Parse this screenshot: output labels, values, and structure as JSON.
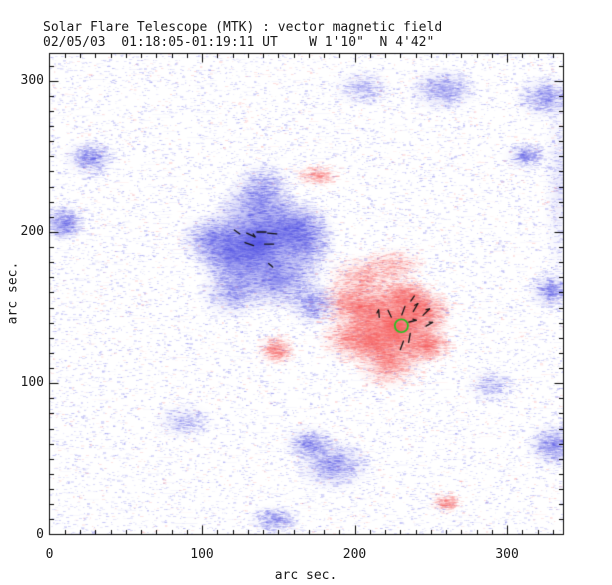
{
  "chart_data": {
    "type": "heatmap",
    "title": "Solar Flare Telescope (MTK) : vector magnetic field",
    "subtitle": "02/05/03  01:18:05-01:19:11 UT    W 1'10\"  N 4'42\"",
    "xlabel": "arc sec.",
    "ylabel": "arc sec.",
    "xlim": [
      0,
      337
    ],
    "ylim": [
      0,
      318
    ],
    "x_major_ticks": [
      0,
      100,
      200,
      300
    ],
    "y_major_ticks": [
      0,
      100,
      200,
      300
    ],
    "minor_tick_step": 10,
    "grid": false,
    "legend": "none",
    "colors": {
      "negative_polarity": "#4b4be4",
      "positive_polarity": "#f85555",
      "flare_marker": "#22c422",
      "vector": "#151515",
      "frame": "#000000",
      "background": "#ffffff"
    },
    "regions": [
      {
        "polarity": "negative",
        "x": 137,
        "y": 193,
        "sx": 15,
        "sy": 14,
        "intensity": 1.0
      },
      {
        "polarity": "negative",
        "x": 120,
        "y": 185,
        "sx": 10,
        "sy": 9,
        "intensity": 0.55
      },
      {
        "polarity": "negative",
        "x": 158,
        "y": 203,
        "sx": 11,
        "sy": 8,
        "intensity": 0.5
      },
      {
        "polarity": "negative",
        "x": 150,
        "y": 168,
        "sx": 12,
        "sy": 8,
        "intensity": 0.5
      },
      {
        "polarity": "negative",
        "x": 168,
        "y": 193,
        "sx": 8,
        "sy": 10,
        "intensity": 0.4
      },
      {
        "polarity": "negative",
        "x": 120,
        "y": 160,
        "sx": 9,
        "sy": 7,
        "intensity": 0.35
      },
      {
        "polarity": "negative",
        "x": 172,
        "y": 152,
        "sx": 7,
        "sy": 6,
        "intensity": 0.3
      },
      {
        "polarity": "negative",
        "x": 105,
        "y": 195,
        "sx": 8,
        "sy": 7,
        "intensity": 0.35
      },
      {
        "polarity": "negative",
        "x": 137,
        "y": 220,
        "sx": 10,
        "sy": 7,
        "intensity": 0.35
      },
      {
        "polarity": "negative",
        "x": 140,
        "y": 232,
        "sx": 8,
        "sy": 6,
        "intensity": 0.22
      },
      {
        "polarity": "positive",
        "x": 228,
        "y": 137,
        "sx": 13,
        "sy": 12,
        "intensity": 1.0
      },
      {
        "polarity": "positive",
        "x": 207,
        "y": 148,
        "sx": 9,
        "sy": 7,
        "intensity": 0.5
      },
      {
        "polarity": "positive",
        "x": 243,
        "y": 148,
        "sx": 9,
        "sy": 6,
        "intensity": 0.45
      },
      {
        "polarity": "positive",
        "x": 222,
        "y": 113,
        "sx": 9,
        "sy": 7,
        "intensity": 0.4
      },
      {
        "polarity": "positive",
        "x": 247,
        "y": 125,
        "sx": 7,
        "sy": 5,
        "intensity": 0.35
      },
      {
        "polarity": "positive",
        "x": 210,
        "y": 128,
        "sx": 8,
        "sy": 6,
        "intensity": 0.45
      },
      {
        "polarity": "positive",
        "x": 232,
        "y": 158,
        "sx": 8,
        "sy": 5,
        "intensity": 0.4
      },
      {
        "polarity": "positive",
        "x": 196,
        "y": 130,
        "sx": 8,
        "sy": 7,
        "intensity": 0.35
      },
      {
        "polarity": "positive",
        "x": 205,
        "y": 170,
        "sx": 10,
        "sy": 6,
        "intensity": 0.28
      },
      {
        "polarity": "positive",
        "x": 225,
        "y": 178,
        "sx": 9,
        "sy": 5,
        "intensity": 0.22
      },
      {
        "polarity": "positive",
        "x": 195,
        "y": 155,
        "sx": 8,
        "sy": 6,
        "intensity": 0.32
      },
      {
        "polarity": "negative",
        "x": 26,
        "y": 249,
        "sx": 7,
        "sy": 5,
        "intensity": 0.3
      },
      {
        "polarity": "negative",
        "x": 9,
        "y": 206,
        "sx": 6,
        "sy": 5,
        "intensity": 0.35
      },
      {
        "polarity": "negative",
        "x": 258,
        "y": 294,
        "sx": 9,
        "sy": 6,
        "intensity": 0.32
      },
      {
        "polarity": "negative",
        "x": 325,
        "y": 289,
        "sx": 8,
        "sy": 6,
        "intensity": 0.3
      },
      {
        "polarity": "negative",
        "x": 312,
        "y": 250,
        "sx": 6,
        "sy": 4,
        "intensity": 0.22
      },
      {
        "polarity": "negative",
        "x": 186,
        "y": 46,
        "sx": 10,
        "sy": 7,
        "intensity": 0.4
      },
      {
        "polarity": "negative",
        "x": 170,
        "y": 60,
        "sx": 7,
        "sy": 5,
        "intensity": 0.3
      },
      {
        "polarity": "negative",
        "x": 330,
        "y": 59,
        "sx": 7,
        "sy": 6,
        "intensity": 0.35
      },
      {
        "polarity": "negative",
        "x": 147,
        "y": 10,
        "sx": 7,
        "sy": 4,
        "intensity": 0.22
      },
      {
        "polarity": "negative",
        "x": 328,
        "y": 161,
        "sx": 6,
        "sy": 5,
        "intensity": 0.3
      },
      {
        "polarity": "negative",
        "x": 88,
        "y": 75,
        "sx": 8,
        "sy": 5,
        "intensity": 0.16
      },
      {
        "polarity": "negative",
        "x": 289,
        "y": 98,
        "sx": 7,
        "sy": 5,
        "intensity": 0.14
      },
      {
        "polarity": "negative",
        "x": 334,
        "y": 230,
        "sx": 4,
        "sy": 30,
        "intensity": 0.13
      },
      {
        "polarity": "negative",
        "x": 205,
        "y": 295,
        "sx": 8,
        "sy": 5,
        "intensity": 0.18
      },
      {
        "polarity": "positive",
        "x": 148,
        "y": 122,
        "sx": 5,
        "sy": 4,
        "intensity": 0.28
      },
      {
        "polarity": "positive",
        "x": 175,
        "y": 237,
        "sx": 6,
        "sy": 3,
        "intensity": 0.18
      },
      {
        "polarity": "positive",
        "x": 259,
        "y": 21,
        "sx": 4,
        "sy": 3,
        "intensity": 0.15
      }
    ],
    "vectors": [
      {
        "x": 123,
        "y": 200,
        "len": 4.5,
        "ang": -35,
        "head": false
      },
      {
        "x": 132,
        "y": 198,
        "len": 6,
        "ang": -25,
        "head": true
      },
      {
        "x": 139,
        "y": 200,
        "len": 6,
        "ang": 0,
        "head": false
      },
      {
        "x": 146,
        "y": 199,
        "len": 6,
        "ang": -5,
        "head": false
      },
      {
        "x": 131,
        "y": 192,
        "len": 6,
        "ang": -20,
        "head": false
      },
      {
        "x": 144,
        "y": 192,
        "len": 6,
        "ang": 0,
        "head": false
      },
      {
        "x": 145,
        "y": 178,
        "len": 3.5,
        "ang": -40,
        "head": false
      },
      {
        "x": 216,
        "y": 146,
        "len": 5,
        "ang": 95,
        "head": true
      },
      {
        "x": 223,
        "y": 146,
        "len": 5,
        "ang": 115,
        "head": false
      },
      {
        "x": 232,
        "y": 148,
        "len": 6,
        "ang": 70,
        "head": false
      },
      {
        "x": 240,
        "y": 150,
        "len": 6,
        "ang": 60,
        "head": true
      },
      {
        "x": 238,
        "y": 156,
        "len": 4,
        "ang": 55,
        "head": false
      },
      {
        "x": 247,
        "y": 147,
        "len": 6,
        "ang": 45,
        "head": true
      },
      {
        "x": 249,
        "y": 139,
        "len": 5,
        "ang": 30,
        "head": true
      },
      {
        "x": 238,
        "y": 141,
        "len": 5,
        "ang": 15,
        "head": true
      },
      {
        "x": 236,
        "y": 130,
        "len": 6,
        "ang": 80,
        "head": false
      },
      {
        "x": 231,
        "y": 125,
        "len": 6,
        "ang": 70,
        "head": false
      }
    ],
    "flare_marker": {
      "x": 230.7,
      "y": 138,
      "r": 4.3
    },
    "noise": {
      "count": 15000,
      "red_fraction": 0.16,
      "streaks": 650,
      "seed": 20030502
    }
  }
}
